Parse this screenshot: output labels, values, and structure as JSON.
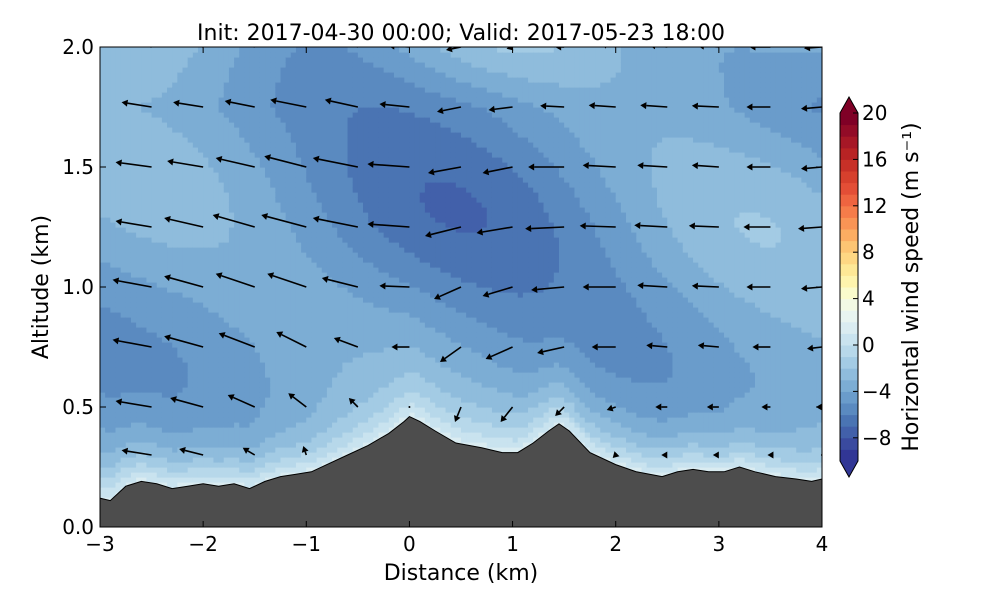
{
  "chart_data": {
    "type": "heatmap",
    "title": "Init: 2017-04-30 00:00; Valid: 2017-05-23 18:00",
    "xlabel": "Distance (km)",
    "ylabel": "Altitude (km)",
    "xlim": [
      -3,
      4
    ],
    "ylim": [
      0,
      2
    ],
    "xticks": [
      -3,
      -2,
      -1,
      0,
      1,
      2,
      3,
      4
    ],
    "xtick_labels": [
      "−3",
      "−2",
      "−1",
      "0",
      "1",
      "2",
      "3",
      "4"
    ],
    "yticks": [
      0.0,
      0.5,
      1.0,
      1.5,
      2.0
    ],
    "ytick_labels": [
      "0.0",
      "0.5",
      "1.0",
      "1.5",
      "2.0"
    ],
    "grid": false,
    "colorbar": {
      "label": "Horizontal wind speed (m s⁻¹)",
      "min": -10,
      "max": 20,
      "step": 1,
      "extend": "both",
      "ticks": [
        -8,
        -4,
        0,
        4,
        8,
        12,
        16,
        20
      ],
      "tick_labels": [
        "−8",
        "−4",
        "0",
        "4",
        "8",
        "12",
        "16",
        "20"
      ],
      "colors": [
        "#313695",
        "#3a4a9f",
        "#4260aa",
        "#4a74b3",
        "#5a8ac0",
        "#6a9ccb",
        "#7cadd4",
        "#8fbcdc",
        "#a3cbe4",
        "#b7d8ea",
        "#c9e3ef",
        "#daecf1",
        "#e8f4f0",
        "#f3f9e4",
        "#fafbcc",
        "#fef4ad",
        "#fee896",
        "#fed783",
        "#fdc573",
        "#fcad62",
        "#f99455",
        "#f57c4a",
        "#ee6440",
        "#e34e36",
        "#d6402d",
        "#c73027",
        "#b82324",
        "#a61726",
        "#920b27",
        "#7f0026"
      ]
    },
    "terrain": {
      "color": "#4d4d4d",
      "x": [
        -3.0,
        -2.9,
        -2.75,
        -2.6,
        -2.45,
        -2.3,
        -2.15,
        -2.0,
        -1.85,
        -1.7,
        -1.55,
        -1.4,
        -1.25,
        -1.1,
        -0.95,
        -0.8,
        -0.6,
        -0.4,
        -0.2,
        -0.05,
        0.0,
        0.1,
        0.25,
        0.45,
        0.7,
        0.9,
        1.05,
        1.2,
        1.35,
        1.45,
        1.55,
        1.75,
        2.0,
        2.2,
        2.45,
        2.6,
        2.75,
        2.9,
        3.05,
        3.2,
        3.35,
        3.55,
        3.75,
        3.9,
        4.0
      ],
      "z": [
        0.12,
        0.11,
        0.17,
        0.19,
        0.18,
        0.16,
        0.17,
        0.18,
        0.17,
        0.18,
        0.16,
        0.19,
        0.21,
        0.22,
        0.23,
        0.26,
        0.3,
        0.34,
        0.39,
        0.44,
        0.46,
        0.44,
        0.4,
        0.35,
        0.33,
        0.31,
        0.31,
        0.35,
        0.4,
        0.43,
        0.4,
        0.31,
        0.26,
        0.23,
        0.21,
        0.23,
        0.24,
        0.23,
        0.23,
        0.25,
        0.23,
        0.21,
        0.2,
        0.19,
        0.2
      ]
    },
    "wind_field": {
      "x": [
        -3.0,
        -2.5,
        -2.0,
        -1.5,
        -1.0,
        -0.5,
        0.0,
        0.5,
        1.0,
        1.5,
        2.0,
        2.5,
        3.0,
        3.5,
        4.0
      ],
      "z": [
        2.0,
        1.75,
        1.5,
        1.25,
        1.0,
        0.75,
        0.5,
        0.3
      ],
      "u": [
        [
          -4.0,
          -5.0,
          -4.5,
          -4.0,
          -5.0,
          -4.5,
          -3.5,
          -2.5,
          -1.0,
          -1.5,
          -2.5,
          -3.0,
          -3.5,
          -3.5,
          -3.0
        ],
        [
          -4.5,
          -5.0,
          -5.0,
          -5.0,
          -6.0,
          -5.5,
          -5.0,
          -4.0,
          -4.0,
          -4.0,
          -4.5,
          -4.5,
          -4.5,
          -4.0,
          -3.5
        ],
        [
          -5.0,
          -6.0,
          -6.0,
          -6.5,
          -7.0,
          -7.5,
          -7.0,
          -5.5,
          -5.0,
          -6.0,
          -5.5,
          -5.0,
          -4.5,
          -4.0,
          -3.5
        ],
        [
          -5.0,
          -6.0,
          -6.5,
          -7.0,
          -7.5,
          -7.5,
          -7.0,
          -6.0,
          -6.0,
          -6.5,
          -6.0,
          -5.5,
          -5.0,
          -4.5,
          -4.0
        ],
        [
          -5.5,
          -6.5,
          -6.5,
          -6.5,
          -6.5,
          -6.0,
          -5.0,
          -4.5,
          -5.0,
          -5.5,
          -5.5,
          -5.0,
          -4.5,
          -4.0,
          -3.5
        ],
        [
          -6.0,
          -6.5,
          -6.5,
          -6.0,
          -5.0,
          -4.0,
          -3.0,
          -3.5,
          -4.5,
          -4.5,
          -4.0,
          -3.5,
          -3.5,
          -3.0,
          -2.5
        ],
        [
          -6.0,
          -6.0,
          -5.5,
          -4.5,
          -3.0,
          -1.5,
          0,
          -1.0,
          -2.0,
          -1.5,
          -1.5,
          -2.0,
          -2.0,
          -1.5,
          -1.0
        ],
        [
          -5.0,
          -5.0,
          -4.0,
          -2.0,
          -0.5,
          0,
          0,
          0,
          0,
          0,
          -0.5,
          -1.0,
          -1.0,
          -0.5,
          0
        ]
      ],
      "w": [
        [
          0.5,
          0.8,
          0.8,
          0.8,
          1.0,
          1.0,
          0.2,
          -0.5,
          -0.3,
          0.0,
          0.5,
          0.3,
          0.2,
          0.0,
          -0.2
        ],
        [
          0.5,
          0.8,
          0.8,
          1.0,
          1.2,
          1.2,
          0.5,
          -0.8,
          -0.5,
          0.2,
          0.3,
          0.3,
          0.2,
          0.0,
          -0.3
        ],
        [
          0.5,
          0.8,
          1.0,
          1.5,
          1.8,
          1.5,
          0.5,
          -1.0,
          -1.0,
          0.0,
          0.3,
          0.3,
          0.3,
          0.0,
          -0.3
        ],
        [
          0.8,
          1.0,
          1.5,
          2.0,
          2.0,
          1.5,
          0.5,
          -1.5,
          -1.0,
          -0.3,
          0.2,
          0.3,
          0.2,
          0.0,
          -0.3
        ],
        [
          0.8,
          1.2,
          1.8,
          2.2,
          2.2,
          1.5,
          0.2,
          -2.0,
          -1.5,
          -0.5,
          0.0,
          0.3,
          0.2,
          0.0,
          -0.3
        ],
        [
          0.8,
          1.2,
          1.8,
          2.3,
          2.5,
          1.5,
          0,
          -2.5,
          -2.0,
          -1.0,
          0.0,
          0.3,
          0.3,
          0.0,
          -0.3
        ],
        [
          0.8,
          1.0,
          1.5,
          2.0,
          2.3,
          1.5,
          0,
          -2.5,
          -2.5,
          -1.5,
          -0.5,
          0.0,
          0.0,
          0.0,
          0.0
        ],
        [
          0.5,
          0.8,
          1.0,
          1.2,
          1.5,
          1.0,
          0,
          -2.0,
          -2.0,
          -1.0,
          -0.5,
          0.0,
          0.0,
          0.0,
          0.0
        ]
      ]
    }
  }
}
